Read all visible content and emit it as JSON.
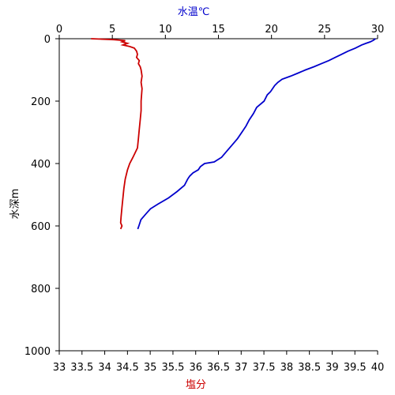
{
  "chart_data": {
    "type": "line",
    "title": "",
    "y_axis": {
      "label": "水深m",
      "range": [
        0,
        1000
      ],
      "ticks": [
        0,
        200,
        400,
        600,
        800,
        1000
      ],
      "inverted": true
    },
    "top_axis": {
      "label": "水温℃",
      "label_color": "#0000cc",
      "range": [
        0,
        30
      ],
      "ticks": [
        0,
        5,
        10,
        15,
        20,
        25,
        30
      ]
    },
    "bottom_axis": {
      "label": "塩分",
      "label_color": "#cc0000",
      "range": [
        33,
        40
      ],
      "ticks": [
        33,
        33.5,
        34,
        34.5,
        35,
        35.5,
        36,
        36.5,
        37,
        37.5,
        38,
        38.5,
        39,
        39.5,
        40
      ]
    },
    "grid": false,
    "series": [
      {
        "quantity": "temperature",
        "axis": "top",
        "color": "#0000cc",
        "depth": [
          0,
          5,
          10,
          15,
          20,
          30,
          40,
          50,
          60,
          70,
          80,
          90,
          100,
          110,
          120,
          130,
          140,
          150,
          160,
          170,
          180,
          200,
          220,
          240,
          260,
          280,
          300,
          320,
          340,
          360,
          380,
          395,
          400,
          410,
          420,
          430,
          440,
          450,
          470,
          490,
          510,
          530,
          545,
          560,
          580,
          600,
          610
        ],
        "values": [
          29.8,
          29.6,
          29.3,
          28.9,
          28.5,
          27.9,
          27.2,
          26.6,
          26.0,
          25.4,
          24.7,
          24.0,
          23.2,
          22.5,
          21.8,
          21.0,
          20.6,
          20.3,
          20.1,
          19.9,
          19.6,
          19.3,
          18.6,
          18.3,
          17.9,
          17.6,
          17.2,
          16.8,
          16.3,
          15.8,
          15.3,
          14.6,
          13.7,
          13.3,
          13.1,
          12.6,
          12.3,
          12.1,
          11.8,
          11.1,
          10.3,
          9.3,
          8.6,
          8.2,
          7.7,
          7.5,
          7.4
        ]
      },
      {
        "quantity": "salinity",
        "axis": "bottom",
        "color": "#cc0000",
        "depth": [
          0,
          3,
          6,
          10,
          15,
          20,
          25,
          30,
          40,
          50,
          60,
          70,
          80,
          90,
          100,
          120,
          140,
          160,
          180,
          200,
          230,
          260,
          290,
          320,
          350,
          380,
          400,
          420,
          450,
          480,
          510,
          540,
          570,
          590,
          600,
          610
        ],
        "values": [
          33.7,
          34.2,
          34.45,
          34.38,
          34.5,
          34.4,
          34.55,
          34.65,
          34.7,
          34.72,
          34.7,
          34.76,
          34.74,
          34.78,
          34.8,
          34.82,
          34.8,
          34.82,
          34.81,
          34.8,
          34.8,
          34.78,
          34.76,
          34.74,
          34.72,
          34.62,
          34.55,
          34.5,
          34.45,
          34.42,
          34.4,
          34.38,
          34.36,
          34.35,
          34.38,
          34.35
        ]
      }
    ]
  }
}
